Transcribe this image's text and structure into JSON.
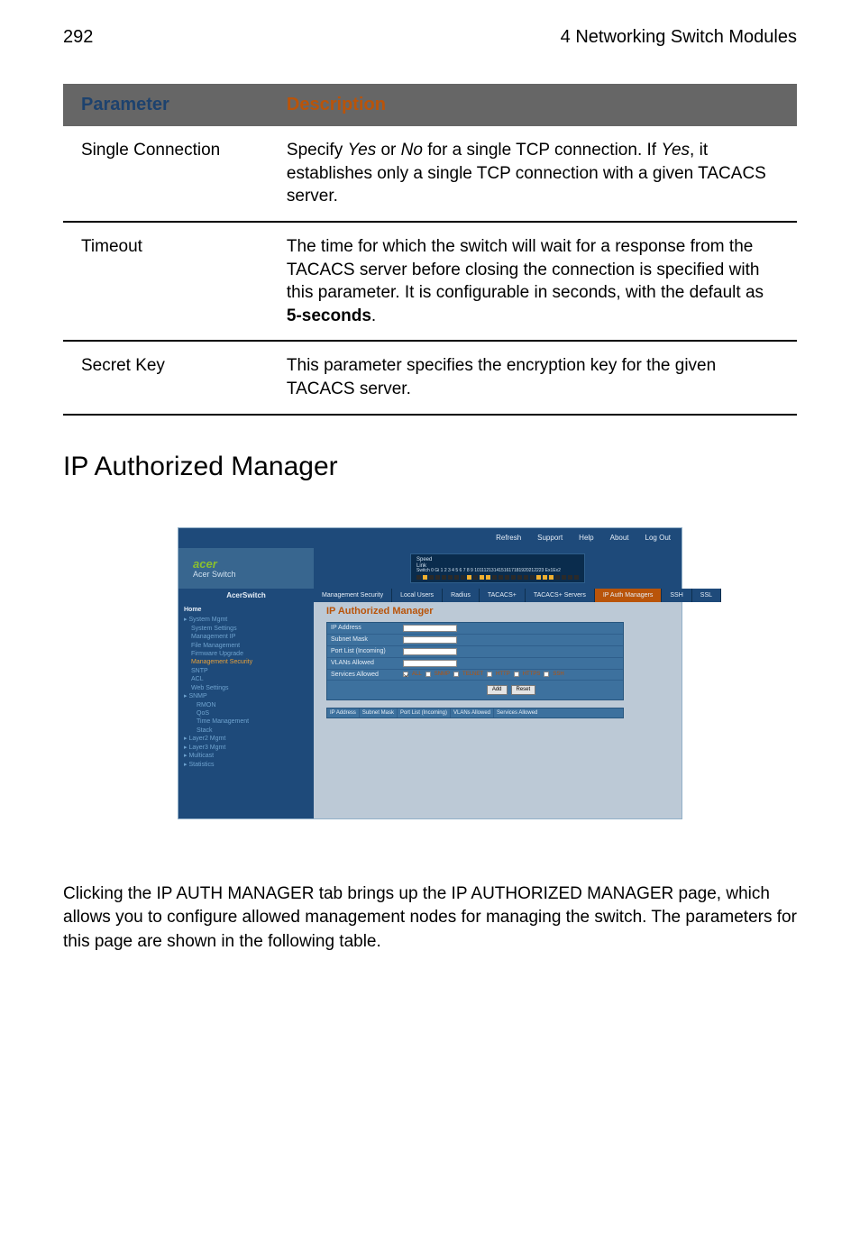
{
  "page": {
    "number": "292",
    "chapter": "4 Networking Switch Modules"
  },
  "param_table": {
    "headers": {
      "param": "Parameter",
      "desc": "Description"
    },
    "header_bg": "#666666",
    "header_param_color": "#1d426e",
    "header_desc_color": "#b9540a",
    "rows": [
      {
        "param": "Single Connection",
        "desc_html": "Specify <em>Yes</em> or <em>No</em> for a single TCP connection. If <em>Yes</em>, it establishes only a single TCP connection with a given TACACS server."
      },
      {
        "param": "Timeout",
        "desc_html": "The time for which the switch will wait for a response from the TACACS server before closing the connection is specified with this parameter. It is configurable in seconds, with the default as <b>5-seconds</b>."
      },
      {
        "param": "Secret Key",
        "desc_html": "This parameter specifies the encryption key for the given TACACS server."
      }
    ]
  },
  "section_title": "IP Authorized Manager",
  "screenshot": {
    "topbar": [
      "Refresh",
      "Support",
      "Help",
      "About",
      "Log Out"
    ],
    "brand": "acer",
    "brand_sub": "Acer Switch",
    "brand_color": "#8abf2e",
    "portpanel": {
      "speed_label": "Speed",
      "link_label": "Link",
      "numbers": "Switch 0 Gi 1 2 3 4 5 6 7 8 9 1011121314151617181920212223 Ex1Ex2"
    },
    "side_label": "AcerSwitch",
    "tabs_main": [
      {
        "label": "Management Security",
        "active": false
      },
      {
        "label": "Local Users",
        "active": false
      },
      {
        "label": "Radius",
        "active": false
      },
      {
        "label": "TACACS+",
        "active": false
      },
      {
        "label": "TACACS+ Servers",
        "active": false
      },
      {
        "label": "IP Auth Managers",
        "active": true
      },
      {
        "label": "SSH",
        "active": false
      },
      {
        "label": "SSL",
        "active": false
      }
    ],
    "nav": {
      "home": "Home",
      "items": [
        {
          "label": "System Mgmt",
          "type": "grp",
          "expanded": true
        },
        {
          "label": "System Settings",
          "type": "itm"
        },
        {
          "label": "Management IP",
          "type": "itm"
        },
        {
          "label": "File Management",
          "type": "itm"
        },
        {
          "label": "Firmware Upgrade",
          "type": "itm"
        },
        {
          "label": "Management Security",
          "type": "itm",
          "active": true
        },
        {
          "label": "SNTP",
          "type": "itm"
        },
        {
          "label": "ACL",
          "type": "itm"
        },
        {
          "label": "Web Settings",
          "type": "itm"
        },
        {
          "label": "SNMP",
          "type": "grp"
        },
        {
          "label": "RMON",
          "type": "subitm"
        },
        {
          "label": "QoS",
          "type": "subitm"
        },
        {
          "label": "Time Management",
          "type": "subitm"
        },
        {
          "label": "Stack",
          "type": "subitm"
        },
        {
          "label": "Layer2 Mgmt",
          "type": "grp"
        },
        {
          "label": "Layer3 Mgmt",
          "type": "grp"
        },
        {
          "label": "Multicast",
          "type": "grp"
        },
        {
          "label": "Statistics",
          "type": "grp"
        }
      ]
    },
    "main": {
      "title": "IP Authorized Manager",
      "title_color": "#b9540a",
      "form_rows": [
        {
          "label": "IP Address",
          "type": "text",
          "value": ""
        },
        {
          "label": "Subnet Mask",
          "type": "text",
          "value": ""
        },
        {
          "label": "Port List (Incoming)",
          "type": "text",
          "value": ""
        },
        {
          "label": "VLANs Allowed",
          "type": "text",
          "value": ""
        },
        {
          "label": "Services Allowed",
          "type": "checkrow",
          "options": [
            {
              "name": "ALL",
              "checked": true
            },
            {
              "name": "SNMP",
              "checked": false
            },
            {
              "name": "TELNET",
              "checked": false
            },
            {
              "name": "HTTP",
              "checked": false
            },
            {
              "name": "HTTPS",
              "checked": false
            },
            {
              "name": "SSH",
              "checked": false
            }
          ]
        }
      ],
      "buttons": [
        "Add",
        "Reset"
      ],
      "result_headers": [
        "IP Address",
        "Subnet Mask",
        "Port List (Incoming)",
        "VLANs Allowed",
        "Services Allowed"
      ]
    },
    "colors": {
      "topbar_bg": "#1e4a7a",
      "logo_bg": "#38668f",
      "tab_active_bg": "#b9540a",
      "body_bg": "#bcc9d6",
      "panel_bg": "#3d719e"
    }
  },
  "body_paragraph_html": "Clicking the IP A<span class=\"smallcaps\">UTH</span> M<span class=\"smallcaps\">ANAGER</span> tab brings up the IP A<span class=\"smallcaps\">UTHORIZED</span> M<span class=\"smallcaps\">ANAGER</span> page, which allows you to configure allowed management nodes for managing the switch. The parameters for this page are shown in the following table."
}
